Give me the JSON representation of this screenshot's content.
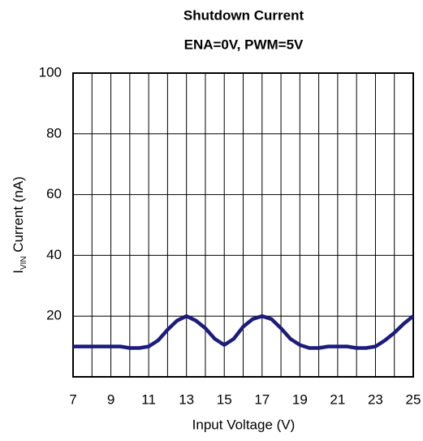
{
  "chart_data": {
    "type": "line",
    "title": "Shutdown Current",
    "subtitle": "ENA=0V, PWM=5V",
    "xlabel": "Input Voltage (V)",
    "ylabel_parts": [
      "I",
      "VIN",
      " Current (nA)"
    ],
    "x": [
      7,
      7.5,
      8,
      8.5,
      9,
      9.5,
      10,
      10.5,
      11,
      11.5,
      12,
      12.5,
      13,
      13.5,
      14,
      14.5,
      15,
      15.5,
      16,
      16.5,
      17,
      17.5,
      18,
      18.5,
      19,
      19.5,
      20,
      20.5,
      21,
      21.5,
      22,
      22.5,
      23,
      23.5,
      24,
      24.5,
      25
    ],
    "series": [
      {
        "color": "#1c1c7c",
        "values": [
          10,
          10,
          10,
          10,
          10,
          10,
          9.5,
          9.5,
          10,
          12,
          15.5,
          18.5,
          20,
          18.5,
          16,
          12.5,
          10.5,
          12.5,
          16.5,
          19,
          20,
          19,
          16,
          12.5,
          10.5,
          9.5,
          9.5,
          10,
          10,
          10,
          9.5,
          9.5,
          10,
          12,
          14.5,
          17.5,
          20
        ]
      }
    ],
    "xlim": [
      7,
      25
    ],
    "xticks": [
      7,
      9,
      11,
      13,
      15,
      17,
      19,
      21,
      23,
      25
    ],
    "x_minor_ticks": [
      8,
      10,
      12,
      14,
      16,
      18,
      20,
      22,
      24
    ],
    "ylim": [
      0,
      100
    ],
    "yticks": [
      20,
      40,
      60,
      80,
      100
    ],
    "grid": true
  }
}
